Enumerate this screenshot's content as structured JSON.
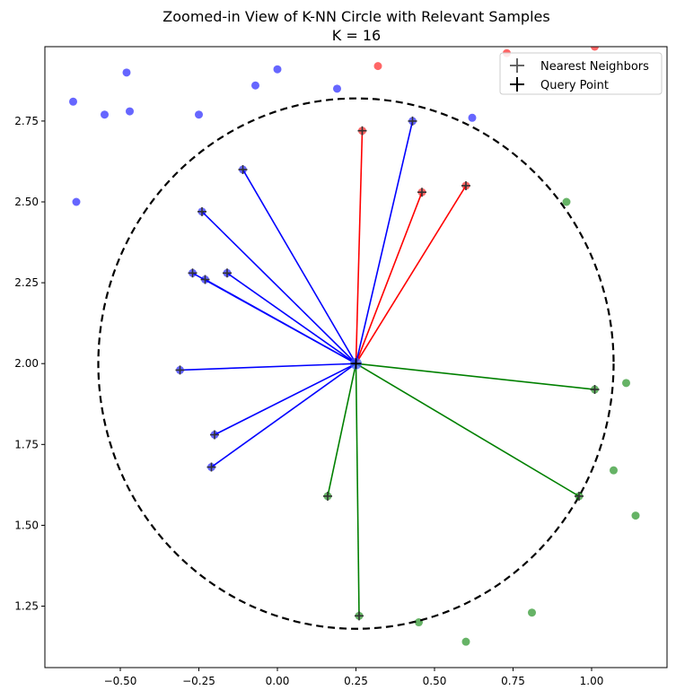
{
  "chart_data": {
    "type": "scatter",
    "title": "Zoomed-in View of K-NN Circle with Relevant Samples",
    "subtitle": "K = 16",
    "xlim": [
      -0.74,
      1.24
    ],
    "ylim": [
      1.06,
      2.98
    ],
    "x_ticks": [
      -0.5,
      -0.25,
      0.0,
      0.25,
      0.5,
      0.75,
      1.0
    ],
    "x_tick_labels": [
      "−0.50",
      "−0.25",
      "0.00",
      "0.25",
      "0.50",
      "0.75",
      "1.00"
    ],
    "y_ticks": [
      1.25,
      1.5,
      1.75,
      2.0,
      2.25,
      2.5,
      2.75
    ],
    "y_tick_labels": [
      "1.25",
      "1.50",
      "1.75",
      "2.00",
      "2.25",
      "2.50",
      "2.75"
    ],
    "grid": false,
    "legend_position": "top-right",
    "legend": [
      {
        "label": "Nearest Neighbors",
        "marker": "plus",
        "color": "#555555"
      },
      {
        "label": "Query Point",
        "marker": "plus",
        "color": "#000000"
      }
    ],
    "query_point": {
      "x": 0.25,
      "y": 2.0
    },
    "circle": {
      "center": [
        0.25,
        2.0
      ],
      "radius": 0.82,
      "style": "dashed",
      "color": "#000000"
    },
    "class_colors": {
      "blue": "#0000ff",
      "red": "#ff0000",
      "green": "#008000"
    },
    "samples": [
      {
        "x": -0.65,
        "y": 2.81,
        "cls": "blue"
      },
      {
        "x": -0.48,
        "y": 2.9,
        "cls": "blue"
      },
      {
        "x": -0.55,
        "y": 2.77,
        "cls": "blue"
      },
      {
        "x": -0.47,
        "y": 2.78,
        "cls": "blue"
      },
      {
        "x": -0.25,
        "y": 2.77,
        "cls": "blue"
      },
      {
        "x": -0.07,
        "y": 2.86,
        "cls": "blue"
      },
      {
        "x": 0.0,
        "y": 2.91,
        "cls": "blue"
      },
      {
        "x": 0.19,
        "y": 2.85,
        "cls": "blue"
      },
      {
        "x": 0.62,
        "y": 2.76,
        "cls": "blue"
      },
      {
        "x": -0.64,
        "y": 2.5,
        "cls": "blue"
      },
      {
        "x": 0.32,
        "y": 2.92,
        "cls": "red"
      },
      {
        "x": 0.73,
        "y": 2.96,
        "cls": "red"
      },
      {
        "x": 1.01,
        "y": 2.98,
        "cls": "red"
      },
      {
        "x": 0.92,
        "y": 2.5,
        "cls": "green"
      },
      {
        "x": 1.11,
        "y": 1.94,
        "cls": "green"
      },
      {
        "x": 1.07,
        "y": 1.67,
        "cls": "green"
      },
      {
        "x": 1.14,
        "y": 1.53,
        "cls": "green"
      },
      {
        "x": 0.81,
        "y": 1.23,
        "cls": "green"
      },
      {
        "x": 0.45,
        "y": 1.2,
        "cls": "green"
      },
      {
        "x": 0.6,
        "y": 1.14,
        "cls": "green"
      }
    ],
    "neighbors": [
      {
        "x": 0.27,
        "y": 2.72,
        "cls": "red"
      },
      {
        "x": 0.46,
        "y": 2.53,
        "cls": "red"
      },
      {
        "x": 0.6,
        "y": 2.55,
        "cls": "red"
      },
      {
        "x": 0.43,
        "y": 2.75,
        "cls": "blue"
      },
      {
        "x": -0.11,
        "y": 2.6,
        "cls": "blue"
      },
      {
        "x": -0.24,
        "y": 2.47,
        "cls": "blue"
      },
      {
        "x": -0.27,
        "y": 2.28,
        "cls": "blue"
      },
      {
        "x": -0.23,
        "y": 2.26,
        "cls": "blue"
      },
      {
        "x": -0.16,
        "y": 2.28,
        "cls": "blue"
      },
      {
        "x": -0.31,
        "y": 1.98,
        "cls": "blue"
      },
      {
        "x": -0.2,
        "y": 1.78,
        "cls": "blue"
      },
      {
        "x": -0.21,
        "y": 1.68,
        "cls": "blue"
      },
      {
        "x": 0.16,
        "y": 1.59,
        "cls": "green"
      },
      {
        "x": 0.26,
        "y": 1.22,
        "cls": "green"
      },
      {
        "x": 0.96,
        "y": 1.59,
        "cls": "green"
      },
      {
        "x": 1.01,
        "y": 1.92,
        "cls": "green"
      }
    ]
  }
}
